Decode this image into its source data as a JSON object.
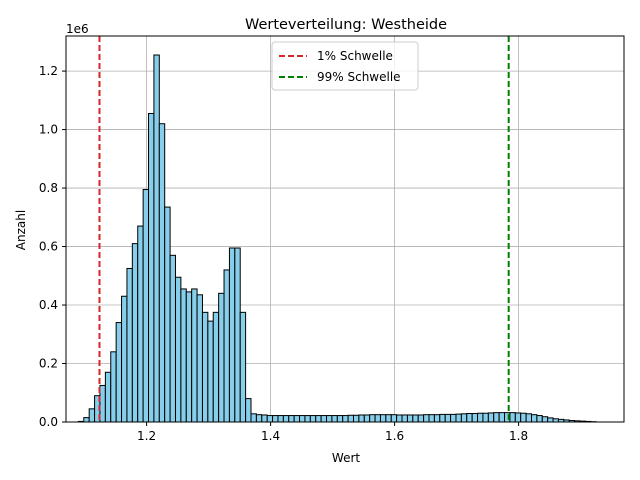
{
  "chart_data": {
    "type": "bar",
    "title": "Werteverteilung: Westheide",
    "xlabel": "Wert",
    "ylabel": "Anzahl",
    "y_offset_label": "1e6",
    "xlim": [
      1.07,
      1.97
    ],
    "ylim": [
      0,
      1320000
    ],
    "x_ticks": [
      1.2,
      1.4,
      1.6,
      1.8
    ],
    "x_tick_labels": [
      "1.2",
      "1.4",
      "1.6",
      "1.8"
    ],
    "y_ticks": [
      0,
      200000,
      400000,
      600000,
      800000,
      1000000,
      1200000
    ],
    "y_tick_labels": [
      "0.0",
      "0.2",
      "0.4",
      "0.6",
      "0.8",
      "1.0",
      "1.2"
    ],
    "grid": true,
    "bin_start": 1.09,
    "bin_width": 0.0087,
    "bar_color": "#87ceeb",
    "bar_edge_color": "#000000",
    "values": [
      2000,
      15000,
      45000,
      90000,
      125000,
      170000,
      240000,
      340000,
      430000,
      525000,
      610000,
      670000,
      795000,
      1055000,
      1255000,
      1020000,
      735000,
      570000,
      495000,
      455000,
      445000,
      455000,
      435000,
      375000,
      345000,
      375000,
      440000,
      520000,
      595000,
      595000,
      375000,
      80000,
      28000,
      25000,
      24000,
      22000,
      22000,
      22000,
      22000,
      22000,
      22000,
      22000,
      22000,
      22000,
      22000,
      22000,
      22000,
      22000,
      22000,
      22000,
      23000,
      23000,
      24000,
      24000,
      25000,
      25000,
      25000,
      25000,
      25000,
      24000,
      24000,
      24000,
      24000,
      24000,
      25000,
      25000,
      25000,
      26000,
      26000,
      26000,
      27000,
      28000,
      29000,
      29000,
      30000,
      30000,
      31000,
      32000,
      32000,
      32000,
      32000,
      31000,
      30000,
      28000,
      25000,
      22000,
      18000,
      14000,
      11000,
      9000,
      7000,
      5000,
      4000,
      3000,
      2000,
      1000
    ],
    "thresholds": [
      {
        "name": "1% Schwelle",
        "x": 1.124,
        "color": "#d62728"
      },
      {
        "name": "99% Schwelle",
        "x": 1.784,
        "color": "#008000"
      }
    ],
    "legend_position": "top-center"
  }
}
